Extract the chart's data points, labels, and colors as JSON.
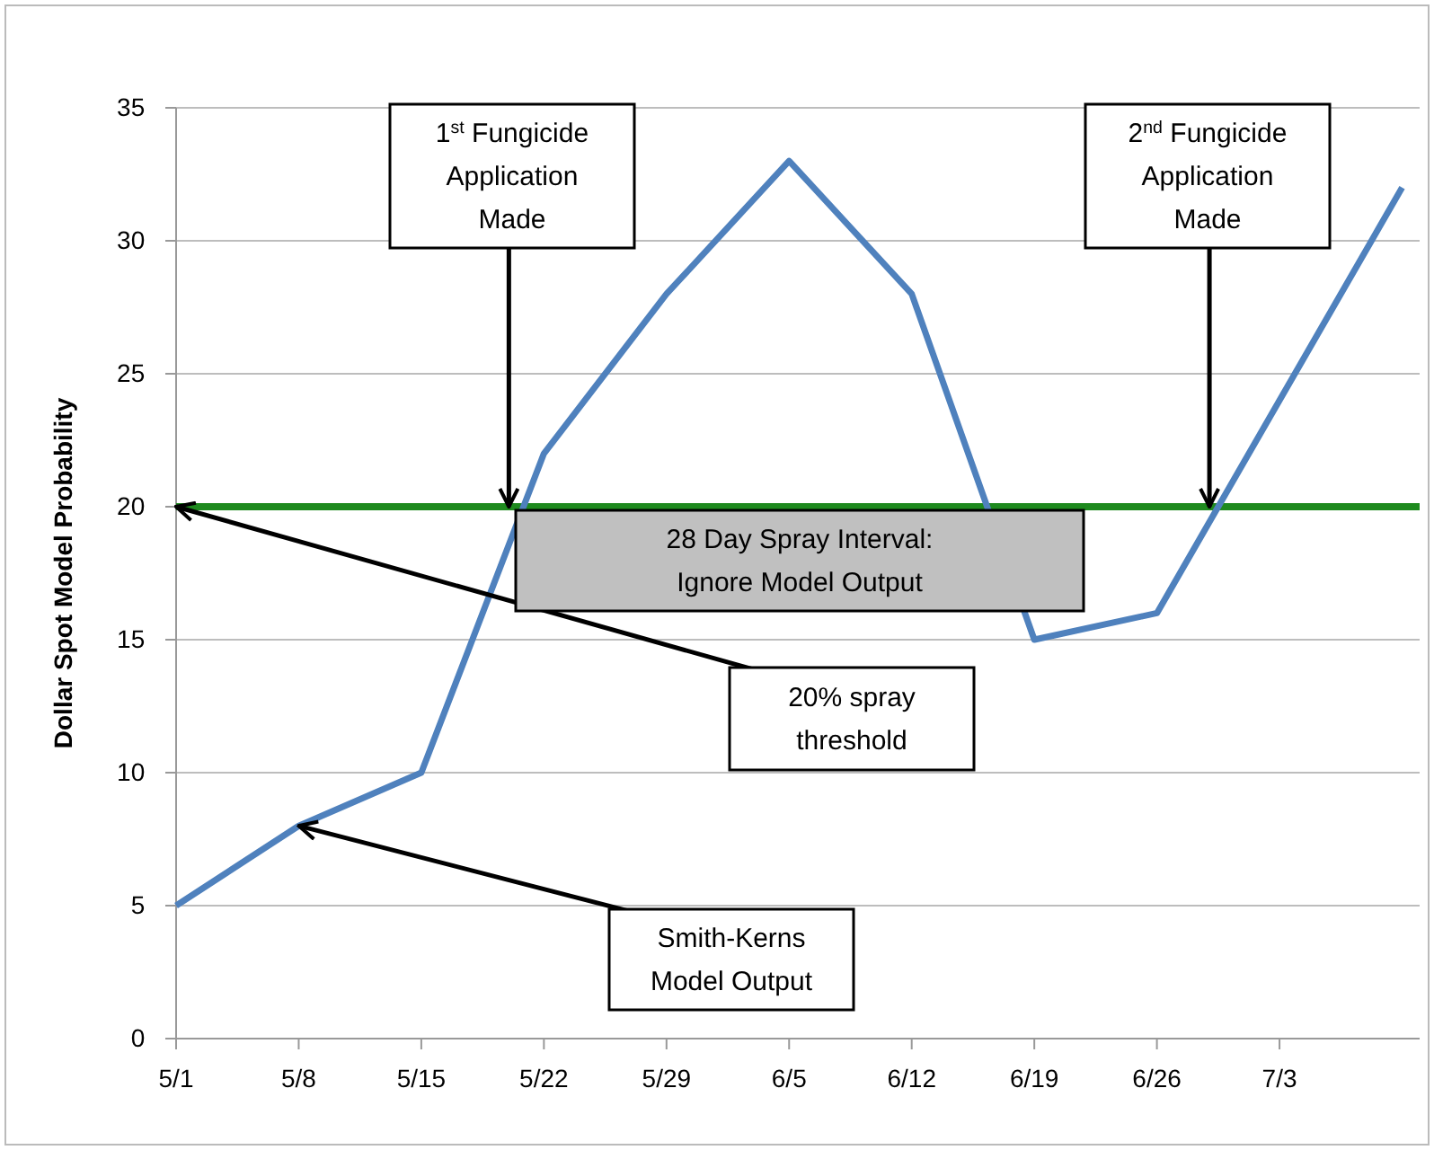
{
  "chart_data": {
    "type": "line",
    "ylabel": "Dollar Spot Model Probability",
    "x": [
      "--05-01",
      "--05-08",
      "--05-15",
      "--05-22",
      "--05-29",
      "--06-05",
      "--06-12",
      "--06-19",
      "--06-26",
      "--07-10"
    ],
    "series": [
      {
        "color": "#4f81bd",
        "values": [
          5,
          8,
          10,
          22,
          28,
          33,
          28,
          15,
          16,
          32
        ]
      }
    ],
    "xlim": [
      "--05-01",
      "--07-11"
    ],
    "xticks": [
      {
        "value": "--05-01",
        "label": "5/1"
      },
      {
        "value": "--05-08",
        "label": "5/8"
      },
      {
        "value": "--05-15",
        "label": "5/15"
      },
      {
        "value": "--05-22",
        "label": "5/22"
      },
      {
        "value": "--05-29",
        "label": "5/29"
      },
      {
        "value": "--06-05",
        "label": "6/5"
      },
      {
        "value": "--06-12",
        "label": "6/12"
      },
      {
        "value": "--06-19",
        "label": "6/19"
      },
      {
        "value": "--06-26",
        "label": "6/26"
      },
      {
        "value": "--07-03",
        "label": "7/3"
      }
    ],
    "ylim": [
      0,
      35
    ],
    "yticks": [
      0,
      5,
      10,
      15,
      20,
      25,
      30,
      35
    ],
    "grid": "y",
    "marker": "none",
    "line_style": "solid",
    "ref_lines": [
      {
        "axis": "y",
        "value": 20,
        "color": "#1e8a1e"
      }
    ],
    "annotations": [
      {
        "text": "1$^{st}$ Fungicide Application Made",
        "x": "--05-20",
        "y": 20
      },
      {
        "text": "2$^{nd}$ Fungicide Application Made",
        "x": "--06-29",
        "y": 20
      },
      {
        "text": "20% spray threshold",
        "x": "--05-01",
        "y": 20
      },
      {
        "text": "Smith-Kerns Model Output",
        "x": "--05-08",
        "y": 8
      },
      "28 Day Spray Interval: Ignore Model Output"
    ]
  }
}
